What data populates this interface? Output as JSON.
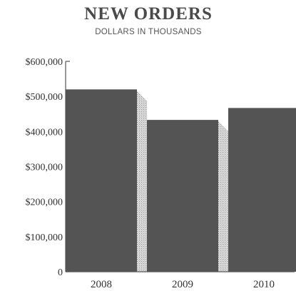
{
  "chart_data": {
    "type": "bar",
    "title": "NEW ORDERS",
    "subtitle": "DOLLARS IN THOUSANDS",
    "categories": [
      "2008",
      "2009",
      "2010"
    ],
    "values": [
      520000,
      433000,
      467000
    ],
    "ylim": [
      0,
      600000
    ],
    "yticks": [
      0,
      100000,
      200000,
      300000,
      400000,
      500000,
      600000
    ],
    "ytick_labels": [
      "0",
      "$100,000",
      "$200,000",
      "$300,000",
      "$400,000",
      "$500,000",
      "$600,000"
    ],
    "grid": false,
    "colors": {
      "bar": "#545454",
      "shadow": "#c8c8c8",
      "axis": "#555555"
    }
  }
}
